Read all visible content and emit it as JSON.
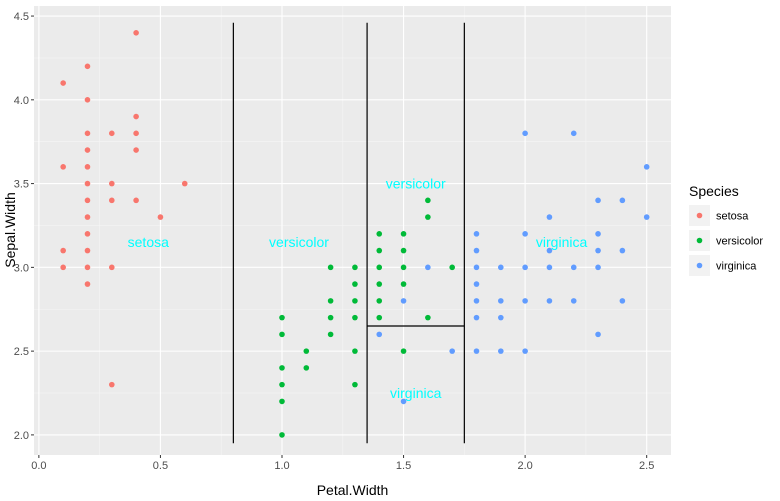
{
  "chart_data": {
    "type": "scatter",
    "xlabel": "Petal.Width",
    "ylabel": "Sepal.Width",
    "xlim": [
      -0.02,
      2.6
    ],
    "ylim": [
      1.88,
      4.56
    ],
    "x_ticks": [
      0.0,
      0.5,
      1.0,
      1.5,
      2.0,
      2.5
    ],
    "x_tick_labels": [
      "0.0",
      "0.5",
      "1.0",
      "1.5",
      "2.0",
      "2.5"
    ],
    "y_ticks": [
      2.0,
      2.5,
      3.0,
      3.5,
      4.0,
      4.5
    ],
    "y_tick_labels": [
      "2.0",
      "2.5",
      "3.0",
      "3.5",
      "4.0",
      "4.5"
    ],
    "grid": true,
    "legend": {
      "title": "Species",
      "placement": "right",
      "entries": [
        "setosa",
        "versicolor",
        "virginica"
      ]
    },
    "series": [
      {
        "name": "setosa",
        "color": "#F8766D",
        "points": [
          [
            0.1,
            4.1
          ],
          [
            0.1,
            3.6
          ],
          [
            0.1,
            3.1
          ],
          [
            0.1,
            3.0
          ],
          [
            0.2,
            4.2
          ],
          [
            0.2,
            4.0
          ],
          [
            0.2,
            3.8
          ],
          [
            0.2,
            3.7
          ],
          [
            0.2,
            3.6
          ],
          [
            0.2,
            3.5
          ],
          [
            0.2,
            3.4
          ],
          [
            0.2,
            3.3
          ],
          [
            0.2,
            3.2
          ],
          [
            0.2,
            3.1
          ],
          [
            0.2,
            3.0
          ],
          [
            0.2,
            2.9
          ],
          [
            0.3,
            3.8
          ],
          [
            0.3,
            3.5
          ],
          [
            0.3,
            3.4
          ],
          [
            0.3,
            3.0
          ],
          [
            0.3,
            2.3
          ],
          [
            0.4,
            4.4
          ],
          [
            0.4,
            3.9
          ],
          [
            0.4,
            3.8
          ],
          [
            0.4,
            3.7
          ],
          [
            0.4,
            3.4
          ],
          [
            0.5,
            3.3
          ],
          [
            0.6,
            3.5
          ]
        ]
      },
      {
        "name": "versicolor",
        "color": "#00BA38",
        "points": [
          [
            1.0,
            2.7
          ],
          [
            1.0,
            2.6
          ],
          [
            1.0,
            2.4
          ],
          [
            1.0,
            2.3
          ],
          [
            1.0,
            2.2
          ],
          [
            1.0,
            2.0
          ],
          [
            1.1,
            2.5
          ],
          [
            1.1,
            2.4
          ],
          [
            1.2,
            3.0
          ],
          [
            1.2,
            2.8
          ],
          [
            1.2,
            2.7
          ],
          [
            1.2,
            2.6
          ],
          [
            1.3,
            3.0
          ],
          [
            1.3,
            2.9
          ],
          [
            1.3,
            2.8
          ],
          [
            1.3,
            2.7
          ],
          [
            1.3,
            2.5
          ],
          [
            1.3,
            2.3
          ],
          [
            1.4,
            3.2
          ],
          [
            1.4,
            3.1
          ],
          [
            1.4,
            3.0
          ],
          [
            1.4,
            2.9
          ],
          [
            1.4,
            2.8
          ],
          [
            1.4,
            2.7
          ],
          [
            1.5,
            3.2
          ],
          [
            1.5,
            3.1
          ],
          [
            1.5,
            3.0
          ],
          [
            1.5,
            2.9
          ],
          [
            1.5,
            2.5
          ],
          [
            1.6,
            3.4
          ],
          [
            1.6,
            3.3
          ],
          [
            1.6,
            2.7
          ],
          [
            1.7,
            3.0
          ]
        ]
      },
      {
        "name": "virginica",
        "color": "#619CFF",
        "points": [
          [
            1.4,
            2.6
          ],
          [
            1.5,
            2.8
          ],
          [
            1.5,
            2.2
          ],
          [
            1.6,
            3.0
          ],
          [
            1.7,
            2.5
          ],
          [
            1.8,
            3.2
          ],
          [
            1.8,
            3.1
          ],
          [
            1.8,
            3.0
          ],
          [
            1.8,
            2.9
          ],
          [
            1.8,
            2.8
          ],
          [
            1.8,
            2.7
          ],
          [
            1.8,
            2.5
          ],
          [
            1.9,
            3.0
          ],
          [
            1.9,
            2.8
          ],
          [
            1.9,
            2.7
          ],
          [
            1.9,
            2.5
          ],
          [
            2.0,
            3.8
          ],
          [
            2.0,
            3.2
          ],
          [
            2.0,
            3.0
          ],
          [
            2.0,
            2.8
          ],
          [
            2.0,
            2.5
          ],
          [
            2.1,
            3.3
          ],
          [
            2.1,
            3.1
          ],
          [
            2.1,
            3.0
          ],
          [
            2.1,
            2.8
          ],
          [
            2.2,
            3.8
          ],
          [
            2.2,
            3.0
          ],
          [
            2.2,
            2.8
          ],
          [
            2.3,
            3.4
          ],
          [
            2.3,
            3.2
          ],
          [
            2.3,
            3.1
          ],
          [
            2.3,
            3.0
          ],
          [
            2.3,
            2.6
          ],
          [
            2.4,
            3.4
          ],
          [
            2.4,
            3.1
          ],
          [
            2.4,
            2.8
          ],
          [
            2.5,
            3.6
          ],
          [
            2.5,
            3.3
          ]
        ]
      }
    ],
    "segments": [
      {
        "x1": 0.8,
        "y1": 1.95,
        "x2": 0.8,
        "y2": 4.46
      },
      {
        "x1": 1.35,
        "y1": 1.95,
        "x2": 1.35,
        "y2": 4.46
      },
      {
        "x1": 1.75,
        "y1": 1.95,
        "x2": 1.75,
        "y2": 4.46
      },
      {
        "x1": 1.35,
        "y1": 2.65,
        "x2": 1.75,
        "y2": 2.65
      }
    ],
    "annotations": [
      {
        "text": "setosa",
        "x": 0.45,
        "y": 3.15
      },
      {
        "text": "versicolor",
        "x": 1.07,
        "y": 3.15
      },
      {
        "text": "versicolor",
        "x": 1.55,
        "y": 3.5
      },
      {
        "text": "virginica",
        "x": 1.55,
        "y": 2.25
      },
      {
        "text": "virginica",
        "x": 2.15,
        "y": 3.15
      }
    ],
    "annotation_color": "#00FFFF"
  }
}
